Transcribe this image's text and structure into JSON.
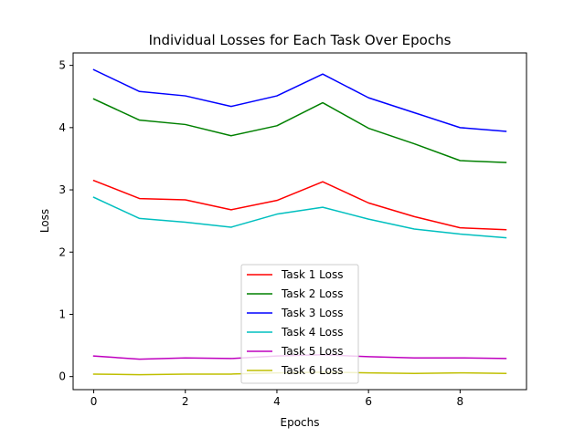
{
  "chart_data": {
    "type": "line",
    "title": "Individual Losses for Each Task Over Epochs",
    "xlabel": "Epochs",
    "ylabel": "Loss",
    "x": [
      0,
      1,
      2,
      3,
      4,
      5,
      6,
      7,
      8,
      9
    ],
    "xlim": [
      -0.45,
      9.45
    ],
    "ylim": [
      -0.21,
      5.2
    ],
    "xticks": [
      0,
      2,
      4,
      6,
      8
    ],
    "yticks": [
      0,
      1,
      2,
      3,
      4,
      5
    ],
    "grid": false,
    "legend_position": "lower center",
    "series": [
      {
        "name": "Task 1 Loss",
        "color": "#ff0000",
        "values": [
          3.15,
          2.86,
          2.84,
          2.68,
          2.83,
          3.13,
          2.79,
          2.57,
          2.39,
          2.36
        ]
      },
      {
        "name": "Task 2 Loss",
        "color": "#008000",
        "values": [
          4.46,
          4.12,
          4.05,
          3.87,
          4.03,
          4.4,
          3.99,
          3.74,
          3.47,
          3.44
        ]
      },
      {
        "name": "Task 3 Loss",
        "color": "#0000ff",
        "values": [
          4.93,
          4.58,
          4.51,
          4.34,
          4.51,
          4.86,
          4.48,
          4.24,
          4.0,
          3.94
        ]
      },
      {
        "name": "Task 4 Loss",
        "color": "#00bfbf",
        "values": [
          2.88,
          2.54,
          2.48,
          2.4,
          2.61,
          2.72,
          2.53,
          2.37,
          2.29,
          2.23
        ]
      },
      {
        "name": "Task 5 Loss",
        "color": "#bf00bf",
        "values": [
          0.33,
          0.28,
          0.3,
          0.29,
          0.33,
          0.35,
          0.32,
          0.3,
          0.3,
          0.29
        ]
      },
      {
        "name": "Task 6 Loss",
        "color": "#bfbf00",
        "values": [
          0.04,
          0.03,
          0.04,
          0.04,
          0.06,
          0.07,
          0.06,
          0.05,
          0.06,
          0.05
        ]
      }
    ]
  }
}
